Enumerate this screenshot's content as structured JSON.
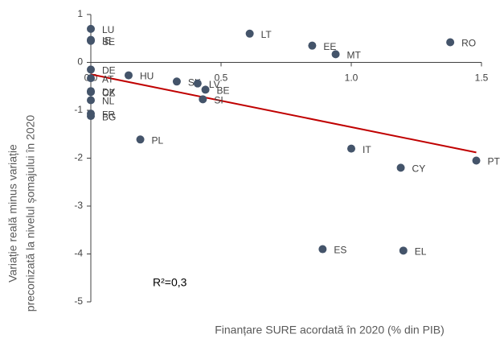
{
  "chart_data": {
    "type": "scatter",
    "xlabel": "Finanțare SURE acordată în 2020 (% din PIB)",
    "ylabel": [
      "Variație reală minus variație",
      "preconizată la nivelul șomajului în 2020"
    ],
    "annotation": "R²=0,3",
    "xlim": [
      0,
      1.5
    ],
    "ylim": [
      -5,
      1
    ],
    "xticks": [
      {
        "value": 0,
        "label": "0.0"
      },
      0.5,
      {
        "value": 1,
        "label": "1.0"
      },
      1.5
    ],
    "yticks": [
      1,
      0,
      -1,
      -2,
      -3,
      -4,
      -5
    ],
    "color": "#44546a",
    "labels": [
      "LU",
      "IE",
      "SE",
      "LT",
      "EE",
      "MT",
      "RO",
      "DE",
      "AT",
      "HU",
      "SK",
      "LV",
      "BE",
      "SI",
      "DK",
      "CZ",
      "NL",
      "FR",
      "BG",
      "PL",
      "IT",
      "CY",
      "PT",
      "ES",
      "EL"
    ],
    "x": [
      0,
      0,
      0,
      0.61,
      0.85,
      0.94,
      1.38,
      0,
      0,
      0.145,
      0.33,
      0.41,
      0.44,
      0.43,
      0,
      0,
      0,
      0,
      0,
      0.19,
      1.0,
      1.19,
      1.48,
      0.89,
      1.2
    ],
    "y": [
      0.7,
      0.47,
      0.45,
      0.6,
      0.35,
      0.17,
      0.42,
      -0.15,
      -0.33,
      -0.27,
      -0.4,
      -0.44,
      -0.57,
      -0.77,
      -0.6,
      -0.62,
      -0.79,
      -1.07,
      -1.12,
      -1.61,
      -1.8,
      -2.2,
      -2.05,
      -3.9,
      -3.93
    ],
    "trendline": {
      "x": [
        0,
        1.48
      ],
      "y": [
        -0.25,
        -1.88
      ],
      "color": "#c00000"
    }
  }
}
